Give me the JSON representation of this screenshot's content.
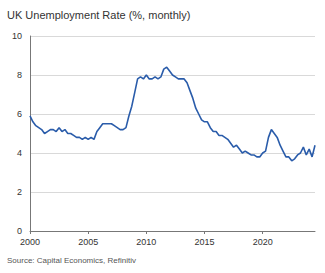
{
  "chart_data": {
    "type": "line",
    "title": "UK Unemployment Rate (%, monthly)",
    "source": "Source: Capital Economics, Refinitiv",
    "x": [
      2000,
      2000.25,
      2000.5,
      2000.75,
      2001,
      2001.25,
      2001.5,
      2001.75,
      2002,
      2002.25,
      2002.5,
      2002.75,
      2003,
      2003.25,
      2003.5,
      2003.75,
      2004,
      2004.25,
      2004.5,
      2004.75,
      2005,
      2005.25,
      2005.5,
      2005.75,
      2006,
      2006.25,
      2006.5,
      2006.75,
      2007,
      2007.25,
      2007.5,
      2007.75,
      2008,
      2008.25,
      2008.5,
      2008.75,
      2009,
      2009.25,
      2009.5,
      2009.75,
      2010,
      2010.25,
      2010.5,
      2010.75,
      2011,
      2011.25,
      2011.5,
      2011.75,
      2012,
      2012.25,
      2012.5,
      2012.75,
      2013,
      2013.25,
      2013.5,
      2013.75,
      2014,
      2014.25,
      2014.5,
      2014.75,
      2015,
      2015.25,
      2015.5,
      2015.75,
      2016,
      2016.25,
      2016.5,
      2016.75,
      2017,
      2017.25,
      2017.5,
      2017.75,
      2018,
      2018.25,
      2018.5,
      2018.75,
      2019,
      2019.25,
      2019.5,
      2019.75,
      2020,
      2020.25,
      2020.5,
      2020.75,
      2021,
      2021.25,
      2021.5,
      2021.75,
      2022,
      2022.25,
      2022.5,
      2022.75,
      2023,
      2023.25,
      2023.5,
      2023.75,
      2024,
      2024.25,
      2024.5
    ],
    "values": [
      5.9,
      5.6,
      5.4,
      5.3,
      5.2,
      5.0,
      5.1,
      5.2,
      5.2,
      5.1,
      5.3,
      5.1,
      5.2,
      5.0,
      5.0,
      4.9,
      4.8,
      4.8,
      4.7,
      4.8,
      4.7,
      4.8,
      4.7,
      5.1,
      5.3,
      5.5,
      5.5,
      5.5,
      5.5,
      5.4,
      5.3,
      5.2,
      5.2,
      5.3,
      5.9,
      6.4,
      7.1,
      7.8,
      7.9,
      7.8,
      8.0,
      7.8,
      7.8,
      7.9,
      7.8,
      7.9,
      8.3,
      8.4,
      8.2,
      8.0,
      7.9,
      7.8,
      7.8,
      7.8,
      7.6,
      7.2,
      6.8,
      6.3,
      6.0,
      5.7,
      5.6,
      5.6,
      5.3,
      5.1,
      5.1,
      4.9,
      4.9,
      4.8,
      4.7,
      4.5,
      4.3,
      4.4,
      4.2,
      4.0,
      4.1,
      4.0,
      3.9,
      3.9,
      3.8,
      3.8,
      4.0,
      4.1,
      4.8,
      5.2,
      5.0,
      4.8,
      4.4,
      4.1,
      3.8,
      3.8,
      3.6,
      3.7,
      3.9,
      4.0,
      4.3,
      3.9,
      4.2,
      3.8,
      4.4
    ],
    "color": "#2a5caa",
    "xlim": [
      2000,
      2024.5
    ],
    "xticks": [
      2000,
      2005,
      2010,
      2015,
      2020
    ],
    "ylim": [
      0,
      10
    ],
    "yticks": [
      0,
      2,
      4,
      6,
      8,
      10
    ],
    "grid": true
  }
}
